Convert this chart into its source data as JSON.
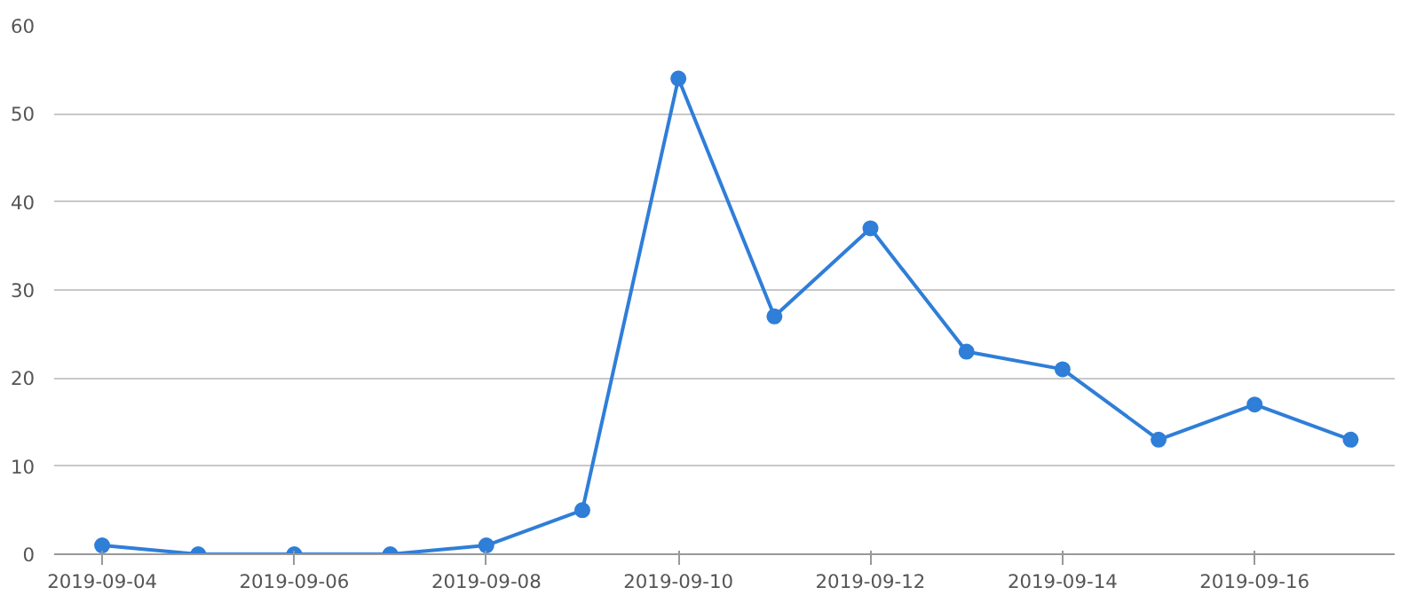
{
  "chart_data": {
    "type": "line",
    "x": [
      "2019-09-04",
      "2019-09-05",
      "2019-09-06",
      "2019-09-07",
      "2019-09-08",
      "2019-09-09",
      "2019-09-10",
      "2019-09-11",
      "2019-09-12",
      "2019-09-13",
      "2019-09-14",
      "2019-09-15",
      "2019-09-16",
      "2019-09-17"
    ],
    "series": [
      {
        "color": "#2f7ed8",
        "values": [
          1,
          0,
          0,
          0,
          1,
          5,
          54,
          27,
          37,
          23,
          21,
          13,
          17,
          13
        ]
      }
    ],
    "xlim": [
      "2019-09-03T12:00",
      "2019-09-17T11:00"
    ],
    "xticks": [
      "2019-09-04",
      "2019-09-06",
      "2019-09-08",
      "2019-09-10",
      "2019-09-12",
      "2019-09-14",
      "2019-09-16"
    ],
    "ylim": [
      0,
      60
    ],
    "yticks": [
      0,
      10,
      20,
      30,
      40,
      50,
      60
    ],
    "grid": "y",
    "marker": "circle",
    "line_style": "solid"
  }
}
